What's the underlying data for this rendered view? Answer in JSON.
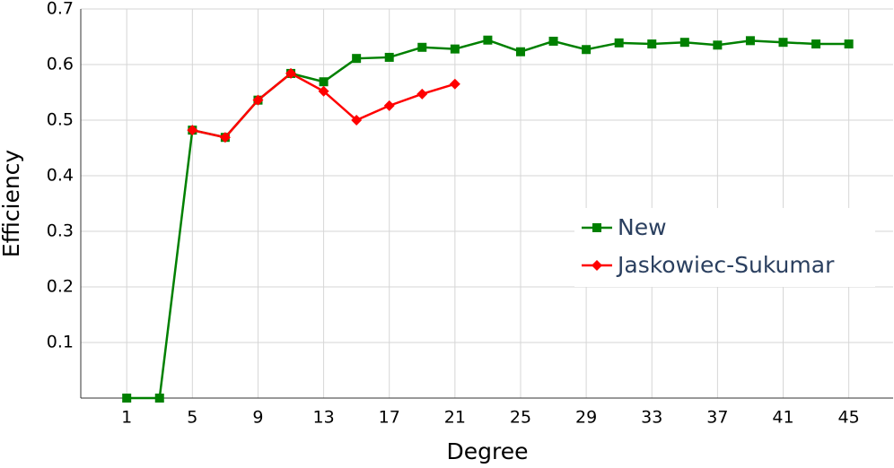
{
  "chart_data": {
    "type": "line",
    "x_label": "Degree",
    "y_label": "Efficiency",
    "x": [
      1,
      3,
      5,
      7,
      9,
      11,
      13,
      15,
      17,
      19,
      21,
      23,
      25,
      27,
      29,
      31,
      33,
      35,
      37,
      39,
      41,
      43,
      45
    ],
    "series": [
      {
        "name": "New",
        "color": "#008000",
        "marker": "square",
        "values": [
          0,
          0,
          0.482,
          0.469,
          0.536,
          0.584,
          0.569,
          0.611,
          0.613,
          0.631,
          0.628,
          0.644,
          0.623,
          0.642,
          0.627,
          0.639,
          0.637,
          0.64,
          0.635,
          0.643,
          0.64,
          0.637,
          0.637
        ]
      },
      {
        "name": "Jaskowiec-Sukumar",
        "color": "#ff0000",
        "marker": "diamond",
        "values": [
          null,
          null,
          0.482,
          0.469,
          0.536,
          0.584,
          0.552,
          0.5,
          0.526,
          0.547,
          0.565,
          null,
          null,
          null,
          null,
          null,
          null,
          null,
          null,
          null,
          null,
          null,
          null
        ]
      }
    ],
    "xlim": [
      -1.8,
      47.7
    ],
    "xticks": [
      1,
      5,
      9,
      13,
      17,
      21,
      25,
      29,
      33,
      37,
      41,
      45
    ],
    "ylim": [
      0,
      0.7
    ],
    "yticks": [
      0.1,
      0.2,
      0.3,
      0.4,
      0.5,
      0.6,
      0.7
    ],
    "grid": true,
    "legend": "right"
  }
}
